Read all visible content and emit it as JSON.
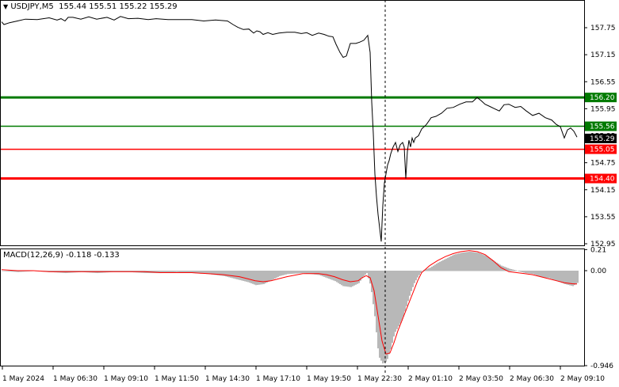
{
  "header": {
    "symbol_label": "USDJPY,M5",
    "ohlc": "155.44 155.51 155.22 155.29",
    "dropdown_icon": "triangle-down-icon"
  },
  "macd_header": {
    "label": "MACD(12,26,9)",
    "values": "-0.118 -0.133"
  },
  "colors": {
    "price_line": "#000000",
    "level_green": "#007a00",
    "level_red": "#ff0000",
    "histogram": "#b8b8b8",
    "signal": "#ff0000",
    "crosshair": "#000000"
  },
  "chart_data": [
    {
      "type": "line",
      "title": "USDJPY,M5",
      "ylim": [
        152.95,
        158.0
      ],
      "y_ticks": [
        "157.75",
        "157.15",
        "156.55",
        "155.95",
        "155.35",
        "154.75",
        "154.15",
        "153.55",
        "152.95"
      ],
      "levels": [
        {
          "label": "156.20",
          "value": 156.2,
          "color": "#007a00",
          "style": "thick"
        },
        {
          "label": "155.56",
          "value": 155.56,
          "color": "#007a00",
          "style": "thin"
        },
        {
          "label": "155.05",
          "value": 155.05,
          "color": "#ff0000",
          "style": "thin"
        },
        {
          "label": "154.40",
          "value": 154.4,
          "color": "#ff0000",
          "style": "thick"
        }
      ],
      "current_price": {
        "label": "155.29",
        "value": 155.29
      },
      "x": [
        0,
        3,
        10,
        20,
        30,
        45,
        60,
        70,
        75,
        80,
        84,
        90,
        100,
        110,
        120,
        133,
        142,
        150,
        160,
        172,
        185,
        195,
        210,
        225,
        240,
        255,
        270,
        285,
        292,
        298,
        305,
        312,
        318,
        322,
        326,
        330,
        336,
        342,
        350,
        360,
        370,
        378,
        385,
        392,
        400,
        407,
        413,
        418,
        422,
        427,
        431,
        435,
        440,
        447,
        452,
        457,
        462,
        465,
        467,
        469,
        471,
        473,
        475,
        477,
        479,
        481,
        483,
        485,
        487,
        489,
        491,
        494,
        497,
        500,
        503,
        506,
        508,
        510,
        512,
        514,
        516,
        518,
        520,
        522,
        526,
        530,
        536,
        542,
        548,
        555,
        562,
        570,
        578,
        586,
        594,
        600,
        605,
        610,
        616,
        622,
        628,
        634,
        640,
        648,
        655,
        662,
        670,
        678,
        686,
        694,
        700,
        705,
        710,
        714,
        718,
        722,
        726
      ],
      "values": [
        157.88,
        157.82,
        157.86,
        157.9,
        157.94,
        157.93,
        157.97,
        157.92,
        157.95,
        157.9,
        157.98,
        157.98,
        157.94,
        157.99,
        157.94,
        157.98,
        157.92,
        158.0,
        157.95,
        157.96,
        157.93,
        157.95,
        157.93,
        157.93,
        157.93,
        157.9,
        157.92,
        157.9,
        157.82,
        157.76,
        157.71,
        157.72,
        157.63,
        157.68,
        157.66,
        157.6,
        157.64,
        157.6,
        157.63,
        157.65,
        157.65,
        157.62,
        157.64,
        157.58,
        157.63,
        157.6,
        157.56,
        157.55,
        157.38,
        157.2,
        157.09,
        157.12,
        157.4,
        157.4,
        157.43,
        157.47,
        157.58,
        157.2,
        156.1,
        155.4,
        154.5,
        154.0,
        153.6,
        153.3,
        153.0,
        153.8,
        154.3,
        154.5,
        154.7,
        154.8,
        154.95,
        155.1,
        155.2,
        155.0,
        155.15,
        155.2,
        155.1,
        154.4,
        155.0,
        155.25,
        155.1,
        155.3,
        155.2,
        155.3,
        155.35,
        155.5,
        155.6,
        155.75,
        155.78,
        155.85,
        155.96,
        155.98,
        156.05,
        156.1,
        156.1,
        156.2,
        156.13,
        156.05,
        156.0,
        155.95,
        155.9,
        156.04,
        156.05,
        155.98,
        156.0,
        155.9,
        155.8,
        155.85,
        155.75,
        155.7,
        155.6,
        155.55,
        155.3,
        155.48,
        155.52,
        155.45,
        155.32
      ]
    },
    {
      "type": "bar",
      "title": "MACD(12,26,9)",
      "ylim": [
        -0.946,
        0.21
      ],
      "y_ticks": [
        "0.21",
        "0.00",
        "-0.946"
      ],
      "main": {
        "name": "MACD",
        "value": -0.118
      },
      "signal": {
        "name": "Signal",
        "value": -0.133
      },
      "x": [
        0,
        20,
        40,
        60,
        80,
        100,
        120,
        140,
        160,
        180,
        200,
        220,
        240,
        260,
        280,
        300,
        310,
        320,
        330,
        340,
        350,
        360,
        380,
        400,
        410,
        420,
        430,
        440,
        450,
        455,
        460,
        465,
        470,
        475,
        480,
        485,
        490,
        495,
        500,
        505,
        510,
        515,
        520,
        525,
        530,
        540,
        550,
        560,
        570,
        580,
        590,
        600,
        610,
        620,
        630,
        640,
        650,
        660,
        670,
        680,
        690,
        700,
        710,
        720,
        726
      ],
      "histogram": [
        0.0,
        -0.01,
        0.0,
        -0.01,
        -0.02,
        -0.01,
        -0.02,
        -0.01,
        -0.01,
        -0.02,
        -0.02,
        -0.01,
        -0.02,
        -0.03,
        -0.05,
        -0.09,
        -0.11,
        -0.14,
        -0.13,
        -0.09,
        -0.05,
        -0.03,
        -0.02,
        -0.04,
        -0.07,
        -0.1,
        -0.15,
        -0.16,
        -0.12,
        -0.06,
        -0.02,
        -0.15,
        -0.45,
        -0.85,
        -0.92,
        -0.9,
        -0.78,
        -0.62,
        -0.55,
        -0.48,
        -0.35,
        -0.22,
        -0.12,
        -0.05,
        0.0,
        0.03,
        0.08,
        0.12,
        0.16,
        0.18,
        0.19,
        0.18,
        0.15,
        0.1,
        0.05,
        0.02,
        0.0,
        -0.02,
        -0.03,
        -0.06,
        -0.07,
        -0.1,
        -0.13,
        -0.15,
        -0.118
      ],
      "signal_values": [
        0.01,
        0.0,
        0.0,
        -0.01,
        -0.01,
        -0.01,
        -0.01,
        -0.01,
        -0.01,
        -0.01,
        -0.02,
        -0.02,
        -0.02,
        -0.03,
        -0.04,
        -0.06,
        -0.08,
        -0.1,
        -0.11,
        -0.1,
        -0.08,
        -0.06,
        -0.03,
        -0.03,
        -0.04,
        -0.06,
        -0.09,
        -0.11,
        -0.1,
        -0.07,
        -0.05,
        -0.07,
        -0.2,
        -0.45,
        -0.7,
        -0.83,
        -0.82,
        -0.72,
        -0.6,
        -0.5,
        -0.4,
        -0.3,
        -0.2,
        -0.1,
        -0.02,
        0.05,
        0.1,
        0.14,
        0.17,
        0.19,
        0.2,
        0.19,
        0.16,
        0.1,
        0.03,
        -0.01,
        -0.02,
        -0.03,
        -0.04,
        -0.06,
        -0.08,
        -0.1,
        -0.12,
        -0.13,
        -0.133
      ]
    }
  ],
  "time_axis": {
    "labels": [
      "1 May 2024",
      "1 May 06:30",
      "1 May 09:10",
      "1 May 11:50",
      "1 May 14:30",
      "1 May 17:10",
      "1 May 19:50",
      "1 May 22:30",
      "2 May 01:10",
      "2 May 03:50",
      "2 May 06:30",
      "2 May 09:10"
    ],
    "crosshair_label": "1 May 22:30"
  }
}
